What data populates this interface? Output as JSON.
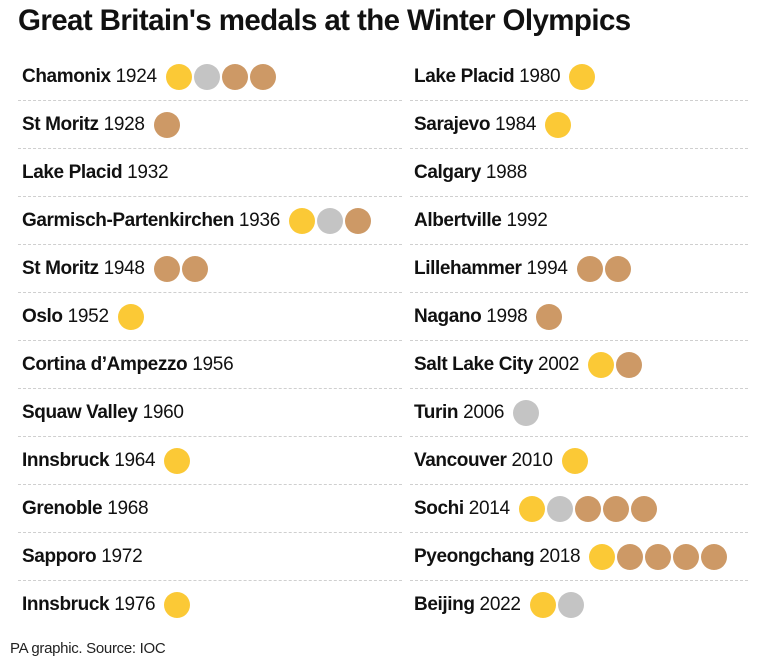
{
  "title": "Great Britain's medals at the Winter Olympics",
  "footer": "PA graphic. Source: IOC",
  "colors": {
    "gold": "#fbc936",
    "silver": "#c4c4c4",
    "bronze": "#cd9966"
  },
  "chart_data": {
    "type": "table",
    "title": "Great Britain's medals at the Winter Olympics",
    "columns": [
      "venue",
      "year",
      "medals"
    ],
    "legend": {
      "gold": "gold circle",
      "silver": "grey circle",
      "bronze": "bronze circle"
    },
    "rows": [
      {
        "venue": "Chamonix",
        "year": "1924",
        "medals": [
          "gold",
          "silver",
          "bronze",
          "bronze"
        ]
      },
      {
        "venue": "St Moritz",
        "year": "1928",
        "medals": [
          "bronze"
        ]
      },
      {
        "venue": "Lake Placid",
        "year": "1932",
        "medals": []
      },
      {
        "venue": "Garmisch-Partenkirchen",
        "year": "1936",
        "medals": [
          "gold",
          "silver",
          "bronze"
        ]
      },
      {
        "venue": "St Moritz",
        "year": "1948",
        "medals": [
          "bronze",
          "bronze"
        ]
      },
      {
        "venue": "Oslo",
        "year": "1952",
        "medals": [
          "gold"
        ]
      },
      {
        "venue": "Cortina d’Ampezzo",
        "year": "1956",
        "medals": []
      },
      {
        "venue": "Squaw Valley",
        "year": "1960",
        "medals": []
      },
      {
        "venue": "Innsbruck",
        "year": "1964",
        "medals": [
          "gold"
        ]
      },
      {
        "venue": "Grenoble",
        "year": "1968",
        "medals": []
      },
      {
        "venue": "Sapporo",
        "year": "1972",
        "medals": []
      },
      {
        "venue": "Innsbruck",
        "year": "1976",
        "medals": [
          "gold"
        ]
      },
      {
        "venue": "Lake Placid",
        "year": "1980",
        "medals": [
          "gold"
        ]
      },
      {
        "venue": "Sarajevo",
        "year": "1984",
        "medals": [
          "gold"
        ]
      },
      {
        "venue": "Calgary",
        "year": "1988",
        "medals": []
      },
      {
        "venue": "Albertville",
        "year": "1992",
        "medals": []
      },
      {
        "venue": "Lillehammer",
        "year": "1994",
        "medals": [
          "bronze",
          "bronze"
        ]
      },
      {
        "venue": "Nagano",
        "year": "1998",
        "medals": [
          "bronze"
        ]
      },
      {
        "venue": "Salt Lake City",
        "year": "2002",
        "medals": [
          "gold",
          "bronze"
        ]
      },
      {
        "venue": "Turin",
        "year": "2006",
        "medals": [
          "silver"
        ]
      },
      {
        "venue": "Vancouver",
        "year": "2010",
        "medals": [
          "gold"
        ]
      },
      {
        "venue": "Sochi",
        "year": "2014",
        "medals": [
          "gold",
          "silver",
          "bronze",
          "bronze",
          "bronze"
        ]
      },
      {
        "venue": "Pyeongchang",
        "year": "2018",
        "medals": [
          "gold",
          "bronze",
          "bronze",
          "bronze",
          "bronze"
        ]
      },
      {
        "venue": "Beijing",
        "year": "2022",
        "medals": [
          "gold",
          "silver"
        ]
      }
    ]
  }
}
